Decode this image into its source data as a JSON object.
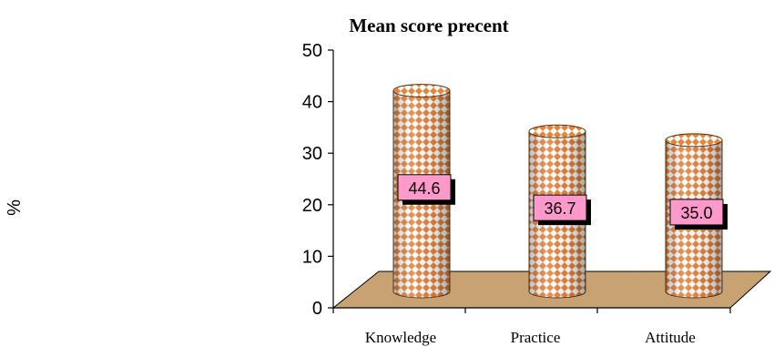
{
  "chart_data": {
    "type": "bar",
    "title": "Mean score precent",
    "ylabel": "%",
    "xlabel": "",
    "categories": [
      "Knowledge",
      "Practice",
      "Attitude"
    ],
    "values": [
      44.6,
      36.7,
      35.0
    ],
    "data_labels": [
      "44.6",
      "36.7",
      "35.0"
    ],
    "ylim": [
      0,
      50
    ],
    "yticks": [
      "0",
      "10",
      "20",
      "30",
      "40",
      "50"
    ],
    "grid": false,
    "legend": "none",
    "colors": {
      "bar_pattern_light": "#ffffff",
      "bar_pattern_dark": "#e8833a",
      "bar_outline": "#5a3210",
      "floor": "#c8a273",
      "label_box": "#ff99cc"
    }
  }
}
